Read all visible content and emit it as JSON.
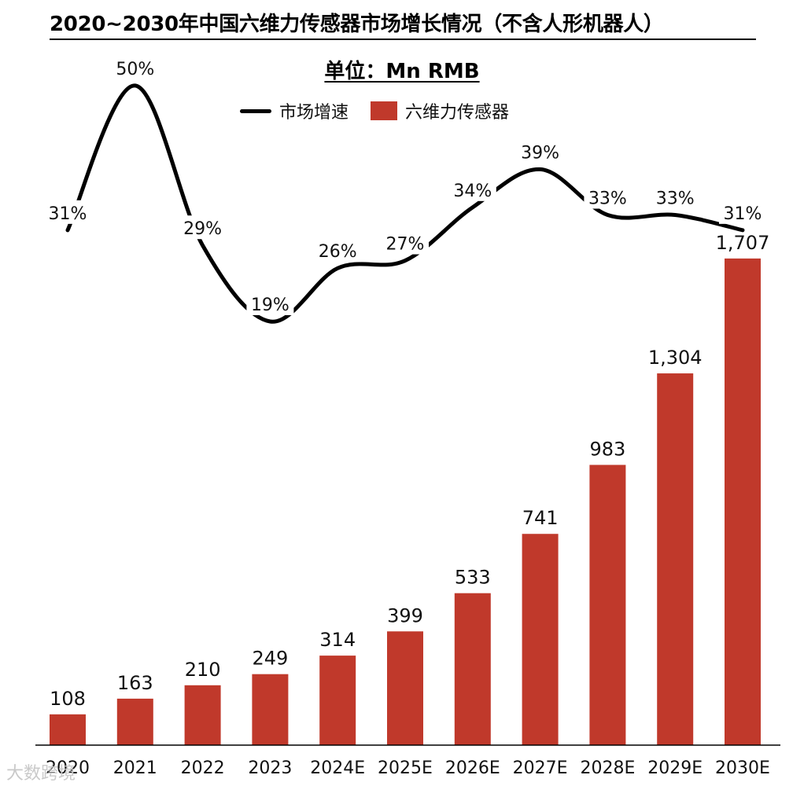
{
  "title": "2020~2030年中国六维力传感器市场增长情况（不含人形机器人）",
  "subtitle": "单位：Mn RMB",
  "watermark": "大数跨境",
  "chart_data": {
    "type": "bar",
    "categories": [
      "2020",
      "2021",
      "2022",
      "2023",
      "2024E",
      "2025E",
      "2026E",
      "2027E",
      "2028E",
      "2029E",
      "2030E"
    ],
    "series": [
      {
        "name": "六维力传感器",
        "type": "bar",
        "color": "#c0392b",
        "values": [
          108,
          163,
          210,
          249,
          314,
          399,
          533,
          741,
          983,
          1304,
          1707
        ],
        "labels": [
          "108",
          "163",
          "210",
          "249",
          "314",
          "399",
          "533",
          "741",
          "983",
          "1,304",
          "1,707"
        ]
      },
      {
        "name": "市场增速",
        "type": "line",
        "color": "#000000",
        "values": [
          31,
          50,
          29,
          19,
          26,
          27,
          34,
          39,
          33,
          33,
          31
        ],
        "labels": [
          "31%",
          "50%",
          "29%",
          "19%",
          "26%",
          "27%",
          "34%",
          "39%",
          "33%",
          "33%",
          "31%"
        ]
      }
    ],
    "ylim_bar": [
      0,
      2000
    ],
    "ylim_line_percent": [
      5,
      55
    ],
    "legend_position": "top-center",
    "grid": false
  }
}
